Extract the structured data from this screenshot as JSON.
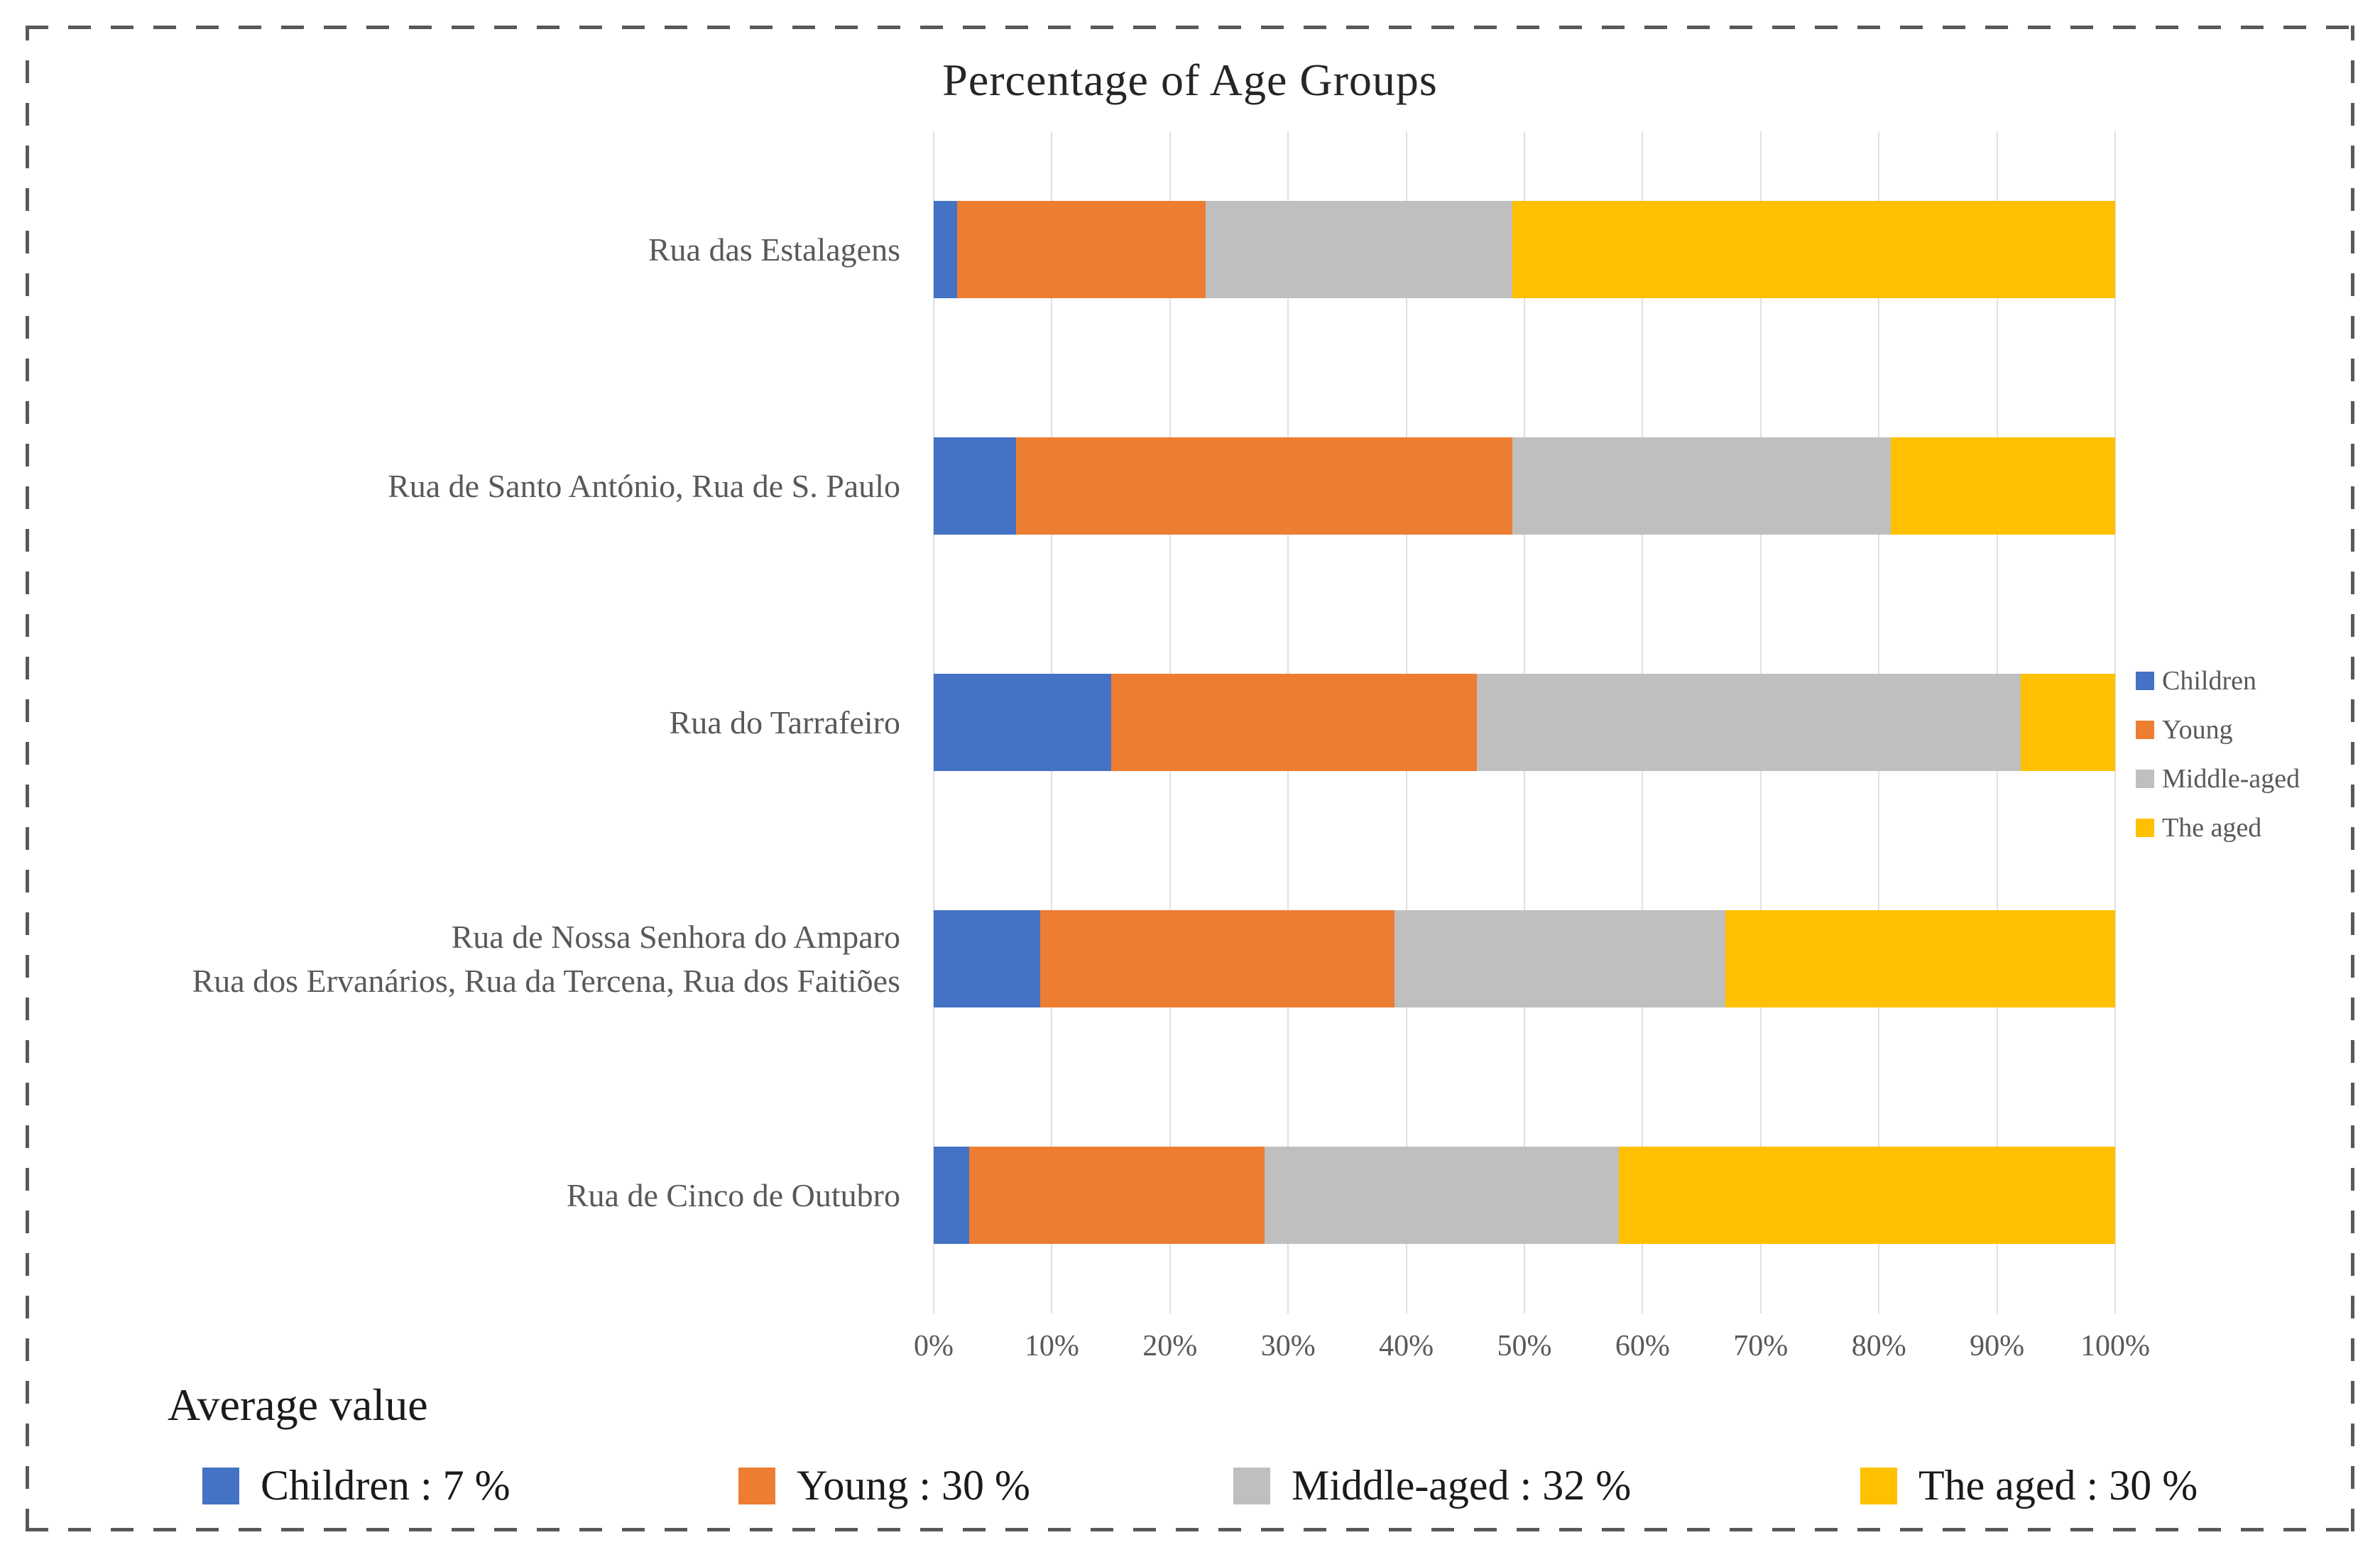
{
  "title": "Percentage of Age Groups",
  "chart_data": {
    "type": "bar",
    "orientation": "horizontal",
    "stacked": true,
    "title": "Percentage of Age Groups",
    "categories": [
      "Rua das Estalagens",
      "Rua de Santo António, Rua de S. Paulo",
      "Rua do Tarrafeiro",
      "Rua de Nossa Senhora do Amparo\nRua dos Ervanários, Rua da Tercena, Rua dos Faitiões",
      "Rua de Cinco de Outubro"
    ],
    "series": [
      {
        "name": "Children",
        "color": "#4472C4",
        "values": [
          2,
          7,
          15,
          9,
          3
        ]
      },
      {
        "name": "Young",
        "color": "#ED7D31",
        "values": [
          21,
          42,
          31,
          30,
          25
        ]
      },
      {
        "name": "Middle-aged",
        "color": "#BFBFBF",
        "values": [
          26,
          32,
          46,
          28,
          30
        ]
      },
      {
        "name": "The aged",
        "color": "#FFC000",
        "values": [
          51,
          19,
          8,
          33,
          42
        ]
      }
    ],
    "x_ticks": [
      "0%",
      "10%",
      "20%",
      "30%",
      "40%",
      "50%",
      "60%",
      "70%",
      "80%",
      "90%",
      "100%"
    ],
    "xlim": [
      0,
      100
    ],
    "grid": true,
    "legend_position": "right",
    "units": "percent"
  },
  "average": {
    "heading": "Average value",
    "items": [
      {
        "label": "Children : 7 %",
        "color": "#4472C4"
      },
      {
        "label": "Young : 30 %",
        "color": "#ED7D31"
      },
      {
        "label": "Middle-aged : 32 %",
        "color": "#BFBFBF"
      },
      {
        "label": "The aged : 30 %",
        "color": "#FFC000"
      }
    ]
  }
}
